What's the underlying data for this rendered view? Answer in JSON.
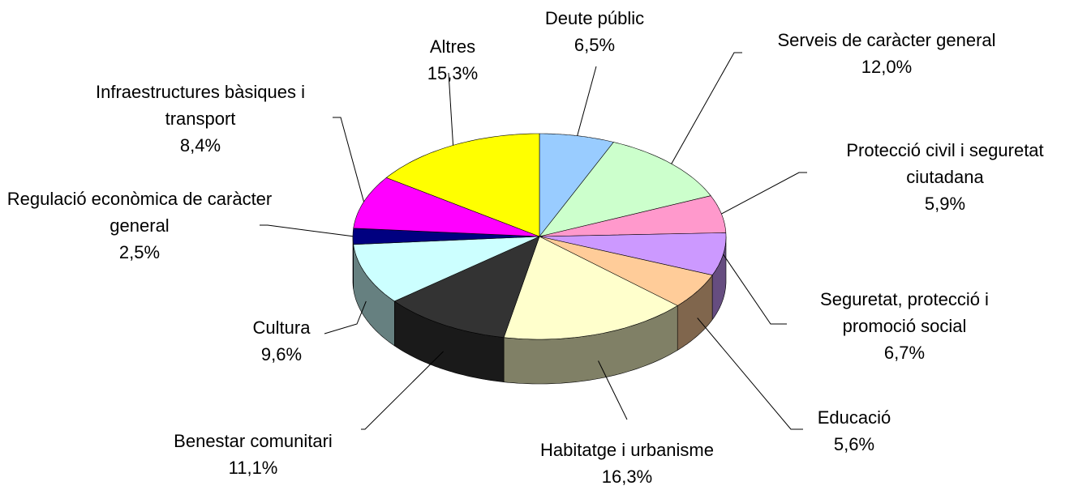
{
  "chart_data": {
    "type": "pie3d",
    "categories": [
      "Deute públic",
      "Serveis de caràcter general",
      "Protecció civil i seguretat ciutadana",
      "Seguretat, protecció i promoció social",
      "Educació",
      "Habitatge i urbanisme",
      "Benestar comunitari",
      "Cultura",
      "Regulació econòmica de caràcter general",
      "Infraestructures bàsiques i transport",
      "Altres"
    ],
    "values": [
      6.5,
      12.0,
      5.9,
      6.7,
      5.6,
      16.3,
      11.1,
      9.6,
      2.5,
      8.4,
      15.3
    ],
    "value_labels": [
      "6,5%",
      "12,0%",
      "5,9%",
      "6,7%",
      "5,6%",
      "16,3%",
      "11,1%",
      "9,6%",
      "2,5%",
      "8,4%",
      "15,3%"
    ],
    "colors": [
      "#99ccff",
      "#ccffcc",
      "#ff99cc",
      "#cc99ff",
      "#ffcc99",
      "#ffffcc",
      "#333333",
      "#ccffff",
      "#000080",
      "#ff00ff",
      "#ffff00"
    ]
  }
}
